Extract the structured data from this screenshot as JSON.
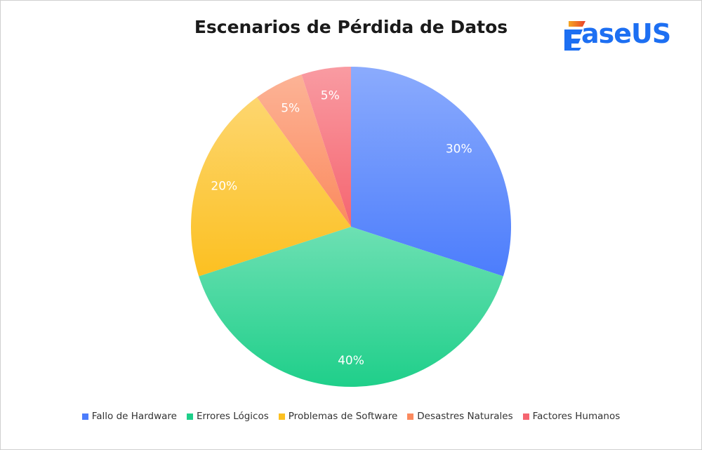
{
  "brand": {
    "logo_text": "aseUS",
    "logo_name": "EaseUS"
  },
  "chart_data": {
    "type": "pie",
    "title": "Escenarios de Pérdida de Datos",
    "categories": [
      "Fallo de Hardware",
      "Errores Lógicos",
      "Problemas de Software",
      "Desastres Naturales",
      "Factores Humanos"
    ],
    "values": [
      30,
      40,
      20,
      5,
      5
    ],
    "labels": [
      "30%",
      "40%",
      "20%",
      "5%",
      "5%"
    ],
    "colors": [
      "#4c7dfc",
      "#1fcf8a",
      "#fcc021",
      "#fb8a5e",
      "#f56570"
    ],
    "legend_position": "bottom",
    "start_angle": "12 o'clock",
    "direction": "clockwise"
  }
}
